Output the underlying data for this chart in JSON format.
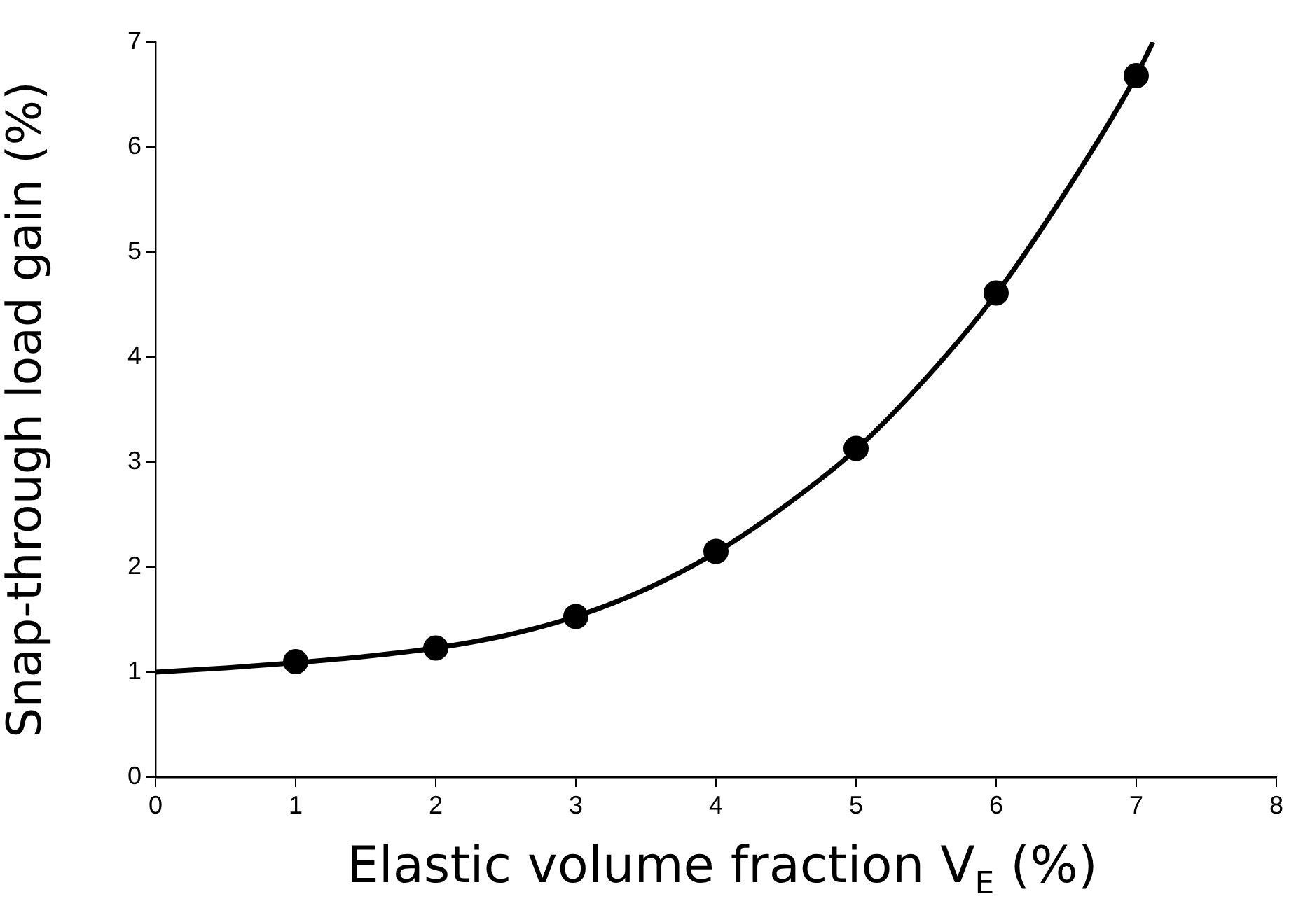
{
  "chart_data": {
    "type": "scatter",
    "xlabel": "Elastic volume fraction V$_{E}$ (%)",
    "ylabel": "Snap-through load gain (%)",
    "xlim": [
      0,
      8
    ],
    "xticks": [
      0,
      1,
      2,
      3,
      4,
      5,
      6,
      7,
      8
    ],
    "ylim": [
      0,
      7
    ],
    "yticks": [
      0,
      1,
      2,
      3,
      4,
      5,
      6,
      7
    ],
    "series": [
      {
        "type": "line",
        "color": "#000000",
        "marker": "none",
        "line_style": "solid",
        "x": [
          0,
          0.5,
          1,
          1.5,
          2,
          2.5,
          3,
          3.5,
          4,
          4.5,
          5,
          5.5,
          6,
          6.5,
          7,
          7.12
        ],
        "values": [
          1.0,
          1.04,
          1.09,
          1.15,
          1.23,
          1.35,
          1.53,
          1.79,
          2.14,
          2.59,
          3.12,
          3.8,
          4.6,
          5.58,
          6.68,
          7.0
        ]
      },
      {
        "type": "scatter",
        "color": "#000000",
        "marker": "circle",
        "x": [
          1,
          2,
          3,
          4,
          5,
          6,
          7
        ],
        "values": [
          1.1,
          1.23,
          1.53,
          2.15,
          3.13,
          4.61,
          6.68
        ]
      }
    ]
  }
}
